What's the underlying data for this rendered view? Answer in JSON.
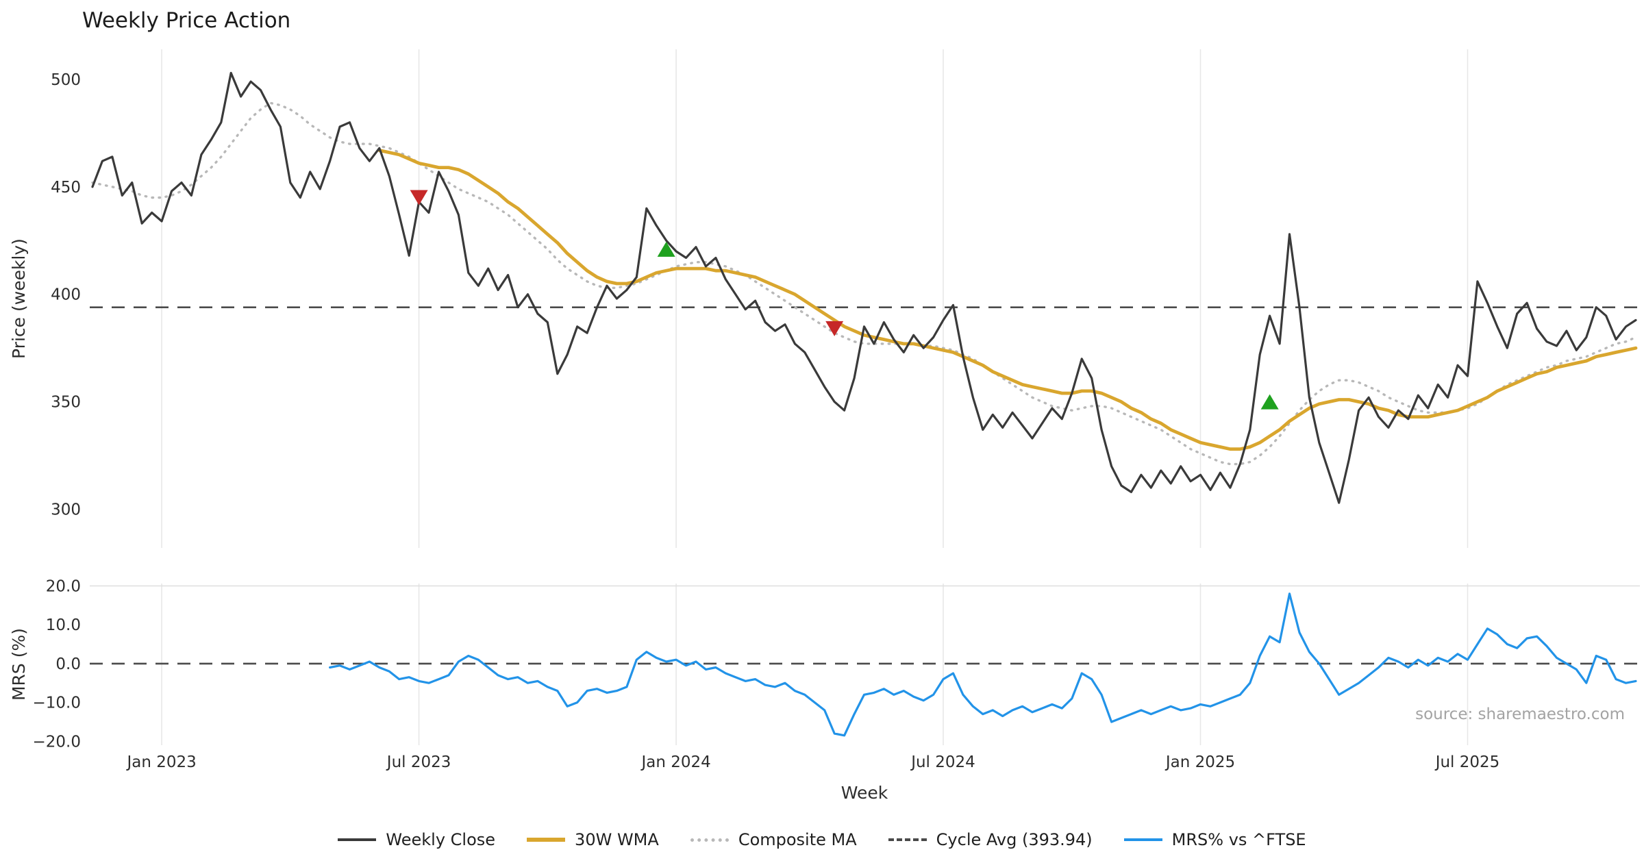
{
  "title": "Weekly Price Action",
  "source_note": "source: sharemaestro.com",
  "chart_data": {
    "type": "line",
    "title": "Weekly Price Action",
    "xlabel": "Week",
    "grid": "vertical-ticks",
    "legend_position": "bottom-center",
    "price_panel": {
      "ylabel": "Price (weekly)",
      "yticks": [
        300,
        350,
        400,
        450,
        500
      ],
      "ylim": [
        282,
        514
      ],
      "cycle_avg": 393.94
    },
    "mrs_panel": {
      "ylabel": "MRS (%)",
      "yticks": [
        -20,
        -10,
        0,
        10,
        20
      ],
      "ytick_labels": [
        "−20.0",
        "−10.0",
        "0.0",
        "10.0",
        "20.0"
      ],
      "ylim": [
        -21,
        20.6
      ],
      "zero_line": 0
    },
    "x": {
      "weeks_total": 157,
      "tick_weeks": [
        7,
        33,
        59,
        86,
        112,
        139
      ],
      "tick_labels": [
        "Jan 2023",
        "Jul 2023",
        "Jan 2024",
        "Jul 2024",
        "Jan 2025",
        "Jul 2025"
      ]
    },
    "series": [
      {
        "name": "Composite MA",
        "color": "#b8b8b8",
        "style": "dotted",
        "panel": "price",
        "start": 0,
        "values": [
          452,
          451,
          450,
          449,
          448,
          446,
          445,
          445,
          446,
          448,
          451,
          455,
          459,
          464,
          470,
          476,
          482,
          486,
          489,
          488,
          486,
          483,
          479,
          476,
          473,
          471,
          470,
          470,
          470,
          469,
          468,
          466,
          464,
          461,
          458,
          455,
          452,
          449,
          447,
          445,
          443,
          440,
          437,
          433,
          429,
          425,
          421,
          416,
          412,
          409,
          406,
          404,
          403,
          403,
          404,
          405,
          407,
          409,
          411,
          413,
          414,
          415,
          415,
          414,
          413,
          411,
          409,
          406,
          403,
          400,
          397,
          394,
          391,
          388,
          385,
          382,
          380,
          378,
          377,
          377,
          377,
          377,
          377,
          377,
          376,
          376,
          375,
          374,
          372,
          370,
          367,
          364,
          361,
          358,
          355,
          352,
          350,
          348,
          347,
          346,
          347,
          348,
          348,
          347,
          345,
          343,
          341,
          339,
          337,
          334,
          331,
          328,
          326,
          324,
          322,
          321,
          321,
          322,
          325,
          329,
          334,
          340,
          346,
          351,
          355,
          358,
          360,
          360,
          359,
          357,
          355,
          352,
          350,
          348,
          346,
          345,
          345,
          345,
          346,
          347,
          349,
          352,
          355,
          358,
          360,
          362,
          364,
          366,
          367,
          369,
          370,
          371,
          373,
          375,
          377,
          378,
          380
        ]
      },
      {
        "name": "30W WMA",
        "color": "#d9a62e",
        "style": "solid-thick",
        "panel": "price",
        "start": 29,
        "values": [
          467,
          466,
          465,
          463,
          461,
          460,
          459,
          459,
          458,
          456,
          453,
          450,
          447,
          443,
          440,
          436,
          432,
          428,
          424,
          419,
          415,
          411,
          408,
          406,
          405,
          405,
          406,
          408,
          410,
          411,
          412,
          412,
          412,
          412,
          411,
          411,
          410,
          409,
          408,
          406,
          404,
          402,
          400,
          397,
          394,
          391,
          388,
          385,
          383,
          381,
          380,
          379,
          378,
          377,
          377,
          376,
          375,
          374,
          373,
          371,
          369,
          367,
          364,
          362,
          360,
          358,
          357,
          356,
          355,
          354,
          354,
          355,
          355,
          354,
          352,
          350,
          347,
          345,
          342,
          340,
          337,
          335,
          333,
          331,
          330,
          329,
          328,
          328,
          329,
          331,
          334,
          337,
          341,
          344,
          347,
          349,
          350,
          351,
          351,
          350,
          349,
          347,
          346,
          344,
          343,
          343,
          343,
          344,
          345,
          346,
          348,
          350,
          352,
          355,
          357,
          359,
          361,
          363,
          364,
          366,
          367,
          368,
          369,
          371,
          372,
          373,
          374,
          375
        ]
      },
      {
        "name": "Weekly Close",
        "color": "#3a3a3a",
        "style": "solid",
        "panel": "price",
        "start": 0,
        "values": [
          450,
          462,
          464,
          446,
          452,
          433,
          438,
          434,
          448,
          452,
          446,
          465,
          472,
          480,
          503,
          492,
          499,
          495,
          486,
          478,
          452,
          445,
          457,
          449,
          462,
          478,
          480,
          468,
          462,
          468,
          455,
          437,
          418,
          443,
          438,
          457,
          448,
          437,
          410,
          404,
          412,
          402,
          409,
          394,
          400,
          391,
          387,
          363,
          372,
          385,
          382,
          394,
          404,
          398,
          402,
          408,
          440,
          432,
          425,
          420,
          417,
          422,
          413,
          417,
          407,
          400,
          393,
          397,
          387,
          383,
          386,
          377,
          373,
          365,
          357,
          350,
          346,
          361,
          385,
          377,
          387,
          379,
          373,
          381,
          375,
          380,
          388,
          395,
          371,
          352,
          337,
          344,
          338,
          345,
          339,
          333,
          340,
          347,
          342,
          354,
          370,
          361,
          337,
          320,
          311,
          308,
          316,
          310,
          318,
          312,
          320,
          313,
          316,
          309,
          317,
          310,
          321,
          337,
          372,
          390,
          377,
          428,
          394,
          352,
          331,
          317,
          303,
          323,
          346,
          352,
          343,
          338,
          346,
          342,
          353,
          347,
          358,
          352,
          367,
          362,
          406,
          396,
          385,
          375,
          391,
          396,
          384,
          378,
          376,
          383,
          374,
          380,
          394,
          390,
          379,
          385,
          388
        ]
      },
      {
        "name": "MRS% vs ^FTSE",
        "color": "#2293e8",
        "style": "solid",
        "panel": "mrs",
        "start": 24,
        "values": [
          -1,
          -0.5,
          -1.5,
          -0.5,
          0.5,
          -1,
          -2,
          -4,
          -3.5,
          -4.5,
          -5,
          -4,
          -3,
          0.5,
          2,
          1,
          -1,
          -3,
          -4,
          -3.5,
          -5,
          -4.5,
          -6,
          -7,
          -11,
          -10,
          -7,
          -6.5,
          -7.5,
          -7,
          -6,
          1,
          3,
          1.5,
          0.5,
          1,
          -0.5,
          0.5,
          -1.5,
          -1,
          -2.5,
          -3.5,
          -4.5,
          -4,
          -5.5,
          -6,
          -5,
          -7,
          -8,
          -10,
          -12,
          -18,
          -18.5,
          -13,
          -8,
          -7.5,
          -6.5,
          -8,
          -7,
          -8.5,
          -9.5,
          -8,
          -4,
          -2.5,
          -8,
          -11,
          -13,
          -12,
          -13.5,
          -12,
          -11,
          -12.5,
          -11.5,
          -10.5,
          -11.5,
          -9,
          -2.5,
          -4,
          -8,
          -15,
          -14,
          -13,
          -12,
          -13,
          -12,
          -11,
          -12,
          -11.5,
          -10.5,
          -11,
          -10,
          -9,
          -8,
          -5,
          2,
          7,
          5.5,
          18,
          8,
          3,
          0,
          -4,
          -8,
          -6.5,
          -5,
          -3,
          -1,
          1.5,
          0.5,
          -1,
          1,
          -0.5,
          1.5,
          0.5,
          2.5,
          1,
          5,
          9,
          7.5,
          5,
          4,
          6.5,
          7,
          4.5,
          1.5,
          0,
          -1.5,
          -5,
          2,
          1,
          -4,
          -5,
          -4.5
        ]
      }
    ],
    "signals": [
      {
        "type": "sell",
        "week": 33,
        "price": 445
      },
      {
        "type": "buy",
        "week": 58,
        "price": 421
      },
      {
        "type": "sell",
        "week": 75,
        "price": 384
      },
      {
        "type": "buy",
        "week": 119,
        "price": 350
      }
    ],
    "signal_colors": {
      "buy": "#1fa11f",
      "sell": "#c62828"
    },
    "legend": [
      {
        "label": "Weekly Close",
        "color": "#3a3a3a",
        "style": "solid"
      },
      {
        "label": "30W WMA",
        "color": "#d9a62e",
        "style": "solid-thick"
      },
      {
        "label": "Composite MA",
        "color": "#b8b8b8",
        "style": "dotted"
      },
      {
        "label": "Cycle Avg (393.94)",
        "color": "#4a4a4a",
        "style": "dashed"
      },
      {
        "label": "MRS% vs ^FTSE",
        "color": "#2293e8",
        "style": "solid"
      }
    ]
  }
}
